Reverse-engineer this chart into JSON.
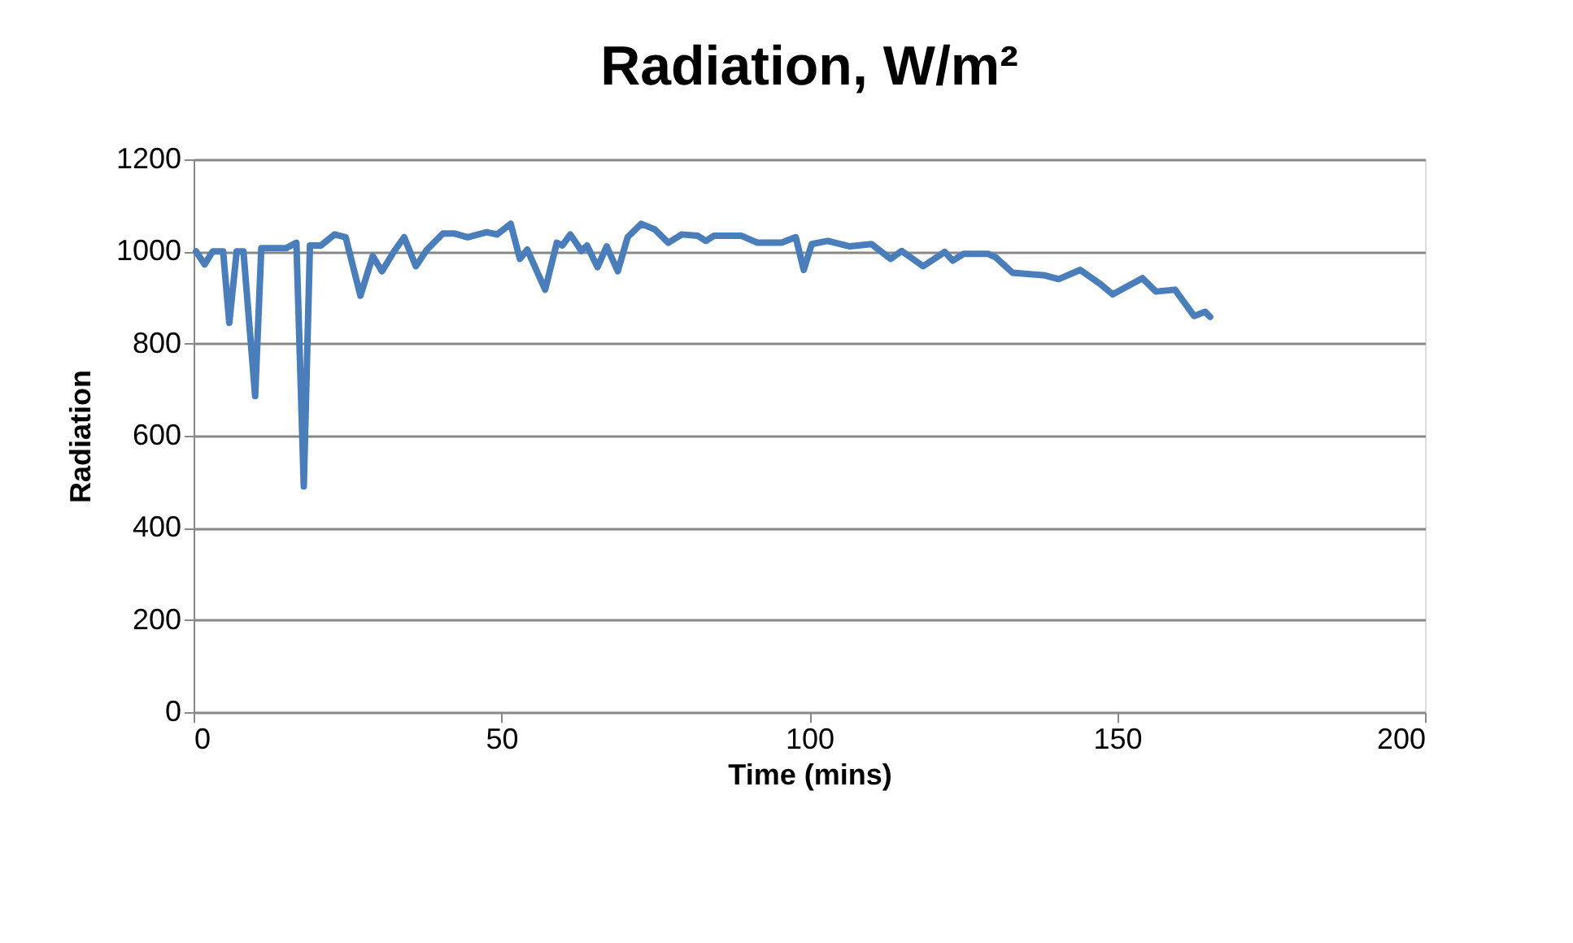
{
  "chart_data": {
    "type": "line",
    "title": "Radiation, W/m²",
    "xlabel": "Time (mins)",
    "ylabel": "Radiation",
    "x": [
      0.4,
      1.8,
      3.1,
      4.8,
      5.8,
      7.0,
      8.1,
      10.0,
      11.0,
      15.0,
      16.7,
      17.9,
      18.9,
      20.7,
      22.9,
      24.7,
      27.1,
      29.1,
      30.6,
      32.6,
      34.2,
      36.1,
      37.9,
      40.5,
      42.3,
      44.5,
      47.6,
      49.3,
      51.5,
      53.0,
      54.2,
      57.1,
      59.0,
      59.9,
      61.2,
      63.0,
      63.9,
      65.6,
      67.1,
      68.9,
      70.5,
      72.7,
      74.9,
      77.1,
      79.3,
      81.9,
      83.2,
      84.5,
      89.0,
      91.6,
      95.5,
      97.8,
      99.1,
      100.4,
      103.0,
      106.6,
      110.1,
      113.2,
      115.0,
      118.5,
      122.0,
      123.3,
      125.1,
      129.0,
      130.3,
      133.0,
      138.3,
      140.5,
      144.0,
      147.1,
      149.3,
      154.1,
      156.3,
      159.4,
      162.5,
      164.3,
      165.1
    ],
    "series": [
      {
        "color": "#4a7ebb",
        "values": [
          1000,
          972,
          1000,
          1000,
          845,
          1000,
          1000,
          686,
          1007,
          1007,
          1019,
          490,
          1013,
          1013,
          1037,
          1031,
          904,
          990,
          957,
          1001,
          1031,
          968,
          1004,
          1039,
          1039,
          1031,
          1042,
          1037,
          1060,
          984,
          1004,
          917,
          1019,
          1013,
          1037,
          1001,
          1013,
          966,
          1011,
          957,
          1031,
          1060,
          1048,
          1019,
          1037,
          1034,
          1023,
          1034,
          1034,
          1019,
          1019,
          1031,
          960,
          1016,
          1023,
          1011,
          1016,
          984,
          1001,
          968,
          999,
          980,
          995,
          995,
          987,
          954,
          948,
          940,
          960,
          931,
          907,
          942,
          913,
          917,
          860,
          869,
          858
        ]
      }
    ],
    "xlim": [
      0,
      200
    ],
    "xticks": [
      0,
      50,
      100,
      150,
      200
    ],
    "ylim": [
      0,
      1200
    ],
    "yticks": [
      0,
      200,
      400,
      600,
      800,
      1000,
      1200
    ],
    "grid": "y",
    "legend": false,
    "marker": "none",
    "line_style": "solid"
  }
}
